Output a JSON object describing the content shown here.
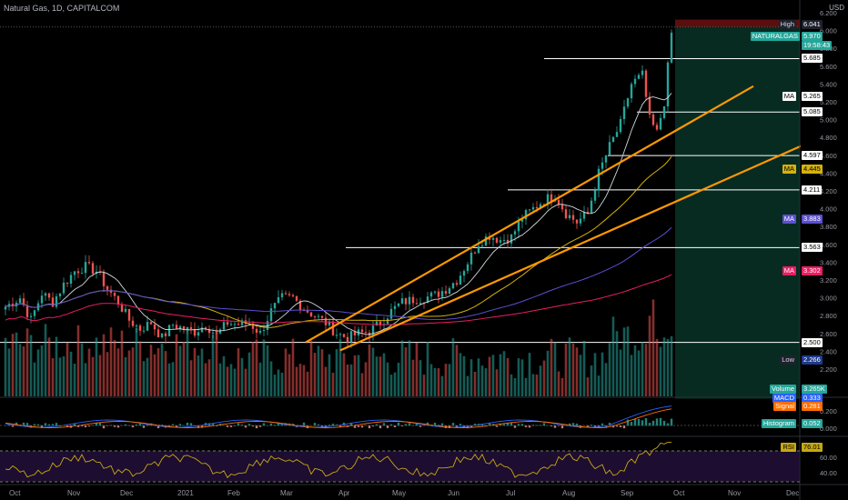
{
  "header": {
    "title": "Natural Gas, 1D, CAPITALCOM",
    "currency": "USD"
  },
  "colors": {
    "bg": "#000000",
    "bull": "#26a69a",
    "bear": "#ef5350",
    "channel": "#ff9800",
    "line": "#ffffff",
    "ma_yellow": "#d4b20c",
    "ma_purple": "#5c4fd0",
    "ma_red": "#e91e63",
    "macd": "#2962ff",
    "signal": "#ff6d00",
    "rsi": "#c6a813"
  },
  "chart_data": [
    {
      "type": "candlestick",
      "title": "Natural Gas, 1D, CAPITALCOM",
      "x_ticks": [
        "Oct",
        "Nov",
        "Dec",
        "2021",
        "Feb",
        "Mar",
        "Apr",
        "May",
        "Jun",
        "Jul",
        "Aug",
        "Sep",
        "Oct",
        "Nov",
        "Dec"
      ],
      "y_ticks": [
        6.2,
        6.0,
        5.8,
        5.6,
        5.4,
        5.2,
        5.0,
        4.8,
        4.6,
        4.4,
        4.2,
        4.0,
        3.8,
        3.6,
        3.4,
        3.2,
        3.0,
        2.8,
        2.6,
        2.4,
        2.2
      ],
      "close_path": [
        [
          0,
          2.9
        ],
        [
          4,
          3.0
        ],
        [
          7,
          2.75
        ],
        [
          10,
          3.05
        ],
        [
          13,
          2.95
        ],
        [
          16,
          3.15
        ],
        [
          19,
          3.3
        ],
        [
          22,
          3.35
        ],
        [
          25,
          3.3
        ],
        [
          28,
          3.1
        ],
        [
          31,
          2.95
        ],
        [
          34,
          2.75
        ],
        [
          37,
          2.65
        ],
        [
          40,
          2.72
        ],
        [
          43,
          2.55
        ],
        [
          46,
          2.7
        ],
        [
          49,
          2.65
        ],
        [
          52,
          2.62
        ],
        [
          55,
          2.7
        ],
        [
          58,
          2.58
        ],
        [
          61,
          2.72
        ],
        [
          64,
          2.7
        ],
        [
          67,
          2.72
        ],
        [
          70,
          2.6
        ],
        [
          73,
          2.85
        ],
        [
          76,
          3.0
        ],
        [
          79,
          3.0
        ],
        [
          82,
          2.88
        ],
        [
          85,
          2.8
        ],
        [
          88,
          2.72
        ],
        [
          91,
          2.6
        ],
        [
          94,
          2.55
        ],
        [
          97,
          2.6
        ],
        [
          100,
          2.62
        ],
        [
          103,
          2.72
        ],
        [
          106,
          2.85
        ],
        [
          109,
          2.95
        ],
        [
          112,
          2.98
        ],
        [
          115,
          3.0
        ],
        [
          118,
          3.03
        ],
        [
          121,
          3.1
        ],
        [
          124,
          3.2
        ],
        [
          127,
          3.4
        ],
        [
          130,
          3.62
        ],
        [
          133,
          3.7
        ],
        [
          136,
          3.65
        ],
        [
          139,
          3.68
        ],
        [
          142,
          3.9
        ],
        [
          145,
          4.0
        ],
        [
          148,
          4.1
        ],
        [
          151,
          4.15
        ],
        [
          154,
          3.95
        ],
        [
          157,
          3.85
        ],
        [
          160,
          3.95
        ],
        [
          163,
          4.4
        ],
        [
          166,
          4.7
        ],
        [
          169,
          4.95
        ],
        [
          172,
          5.4
        ],
        [
          175,
          5.5
        ],
        [
          177,
          5.0
        ],
        [
          179,
          4.85
        ],
        [
          181,
          5.2
        ],
        [
          183,
          5.97
        ]
      ],
      "series": [
        {
          "name": "NATURALGAS",
          "last": "5.970"
        },
        {
          "name": "MA",
          "last": "5.265"
        },
        {
          "name": "MA",
          "last": "4.445"
        },
        {
          "name": "MA",
          "last": "3.883"
        },
        {
          "name": "MA",
          "last": "3.302"
        }
      ],
      "horizontal_levels": [
        "5.685",
        "5.085",
        "4.597",
        "4.211",
        "3.563",
        "2.500"
      ],
      "labels": {
        "high": {
          "text": "High",
          "value": "6.041"
        },
        "price": {
          "text": "NATURALGAS",
          "value": "5.970",
          "countdown": "19:58:43"
        },
        "low": {
          "text": "Low",
          "value": "2.266"
        }
      },
      "channel_lines": 2
    },
    {
      "type": "bar",
      "name": "Volume",
      "last": "3.265K"
    },
    {
      "type": "bar",
      "panel": "MACD",
      "y_ticks": [
        0.2,
        0.0
      ],
      "labels": {
        "macd": {
          "text": "MACD",
          "value": "0.333"
        },
        "signal": {
          "text": "Signal",
          "value": "0.281"
        },
        "histogram": {
          "text": "Histogram",
          "value": "0.052"
        }
      }
    },
    {
      "type": "line",
      "panel": "RSI",
      "y_ticks": [
        60.0,
        40.0
      ],
      "levels": [
        70,
        30
      ],
      "labels": {
        "rsi": {
          "text": "RSI",
          "value": "76.01"
        }
      }
    }
  ]
}
